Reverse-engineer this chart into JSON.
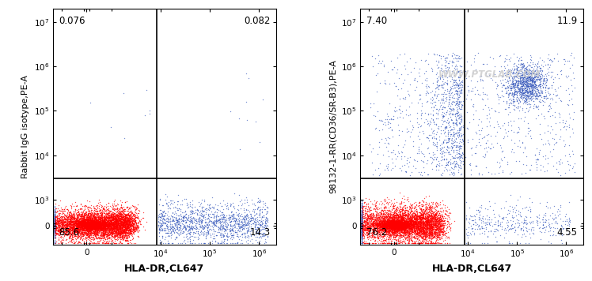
{
  "panel1": {
    "ylabel": "Rabbit IgG isotype,PE-A",
    "xlabel": "HLA-DR,CL647",
    "quad_bl": "85.6",
    "quad_br": "14.3",
    "quad_tl": "0.076",
    "quad_tr": "0.082",
    "gate_x": 8500,
    "gate_y": 3000
  },
  "panel2": {
    "ylabel": "98132-1-RR(CD36/SR-B3),PE-A",
    "xlabel": "HLA-DR,CL647",
    "quad_bl": "76.2",
    "quad_br": "4.55",
    "quad_tl": "7.40",
    "quad_tr": "11.9",
    "gate_x": 8500,
    "gate_y": 3000,
    "watermark": "WWW.PTGLAB.COM"
  },
  "bg_color": "#ffffff",
  "sparse_dot_color": "#3355bb",
  "yticks": [
    0,
    1000,
    10000,
    100000,
    1000000,
    10000000
  ],
  "ytick_labels": [
    "0",
    "10$^3$",
    "10$^4$",
    "10$^5$",
    "10$^6$",
    "10$^7$"
  ],
  "xticks": [
    0,
    10000,
    100000,
    1000000
  ],
  "xtick_labels": [
    "0",
    "10$^4$",
    "10$^5$",
    "10$^6$"
  ]
}
